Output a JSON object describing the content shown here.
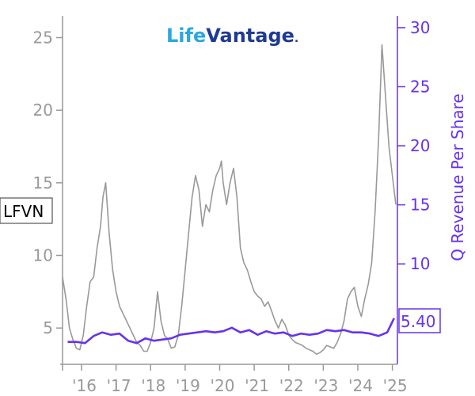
{
  "chart_data": {
    "type": "line",
    "ticker": "LFVN",
    "title": "",
    "logo": {
      "text_part1": "Life",
      "text_part2": "Vantage",
      "text_suffix": ".",
      "color1": "#2aa7e0",
      "color2": "#1f3a93"
    },
    "x_tick_labels": [
      "'16",
      "'17",
      "'18",
      "'19",
      "'20",
      "'21",
      "'22",
      "'23",
      "'24",
      "'25"
    ],
    "xlim": [
      2015.45,
      2025.1
    ],
    "left_axis": {
      "label": "",
      "ylim": [
        2.5,
        26.5
      ],
      "ticks": [
        5,
        10,
        15,
        20,
        25
      ],
      "color": "#999999"
    },
    "right_axis": {
      "label": "Q Revenue Per Share",
      "ylim": [
        1.5,
        31
      ],
      "ticks": [
        10,
        15,
        20,
        25,
        30
      ],
      "color": "#6633ee"
    },
    "series": [
      {
        "name": "LFVN",
        "axis": "left",
        "color": "#999999",
        "last_value_label": "LFVN",
        "x": [
          2015.45,
          2015.55,
          2015.65,
          2015.75,
          2015.85,
          2015.95,
          2016.05,
          2016.15,
          2016.25,
          2016.35,
          2016.45,
          2016.55,
          2016.62,
          2016.7,
          2016.8,
          2016.9,
          2017.0,
          2017.1,
          2017.2,
          2017.3,
          2017.4,
          2017.5,
          2017.6,
          2017.7,
          2017.8,
          2017.9,
          2018.0,
          2018.1,
          2018.2,
          2018.3,
          2018.4,
          2018.5,
          2018.6,
          2018.7,
          2018.8,
          2018.9,
          2019.0,
          2019.1,
          2019.2,
          2019.3,
          2019.4,
          2019.5,
          2019.6,
          2019.7,
          2019.8,
          2019.9,
          2020.0,
          2020.05,
          2020.1,
          2020.2,
          2020.3,
          2020.4,
          2020.5,
          2020.6,
          2020.7,
          2020.8,
          2020.9,
          2021.0,
          2021.1,
          2021.2,
          2021.3,
          2021.4,
          2021.5,
          2021.6,
          2021.7,
          2021.8,
          2021.9,
          2022.0,
          2022.1,
          2022.2,
          2022.3,
          2022.4,
          2022.5,
          2022.6,
          2022.7,
          2022.8,
          2022.9,
          2023.0,
          2023.1,
          2023.2,
          2023.3,
          2023.4,
          2023.5,
          2023.6,
          2023.7,
          2023.8,
          2023.9,
          2024.0,
          2024.1,
          2024.2,
          2024.3,
          2024.4,
          2024.5,
          2024.6,
          2024.7,
          2024.8,
          2024.9,
          2025.0,
          2025.1
        ],
        "values": [
          8.5,
          7.0,
          5.0,
          4.2,
          3.6,
          3.5,
          4.5,
          6.5,
          8.2,
          8.5,
          10.5,
          12.0,
          14.0,
          15.0,
          11.5,
          9.0,
          7.5,
          6.5,
          6.0,
          5.5,
          5.0,
          4.5,
          4.0,
          3.8,
          3.4,
          3.4,
          4.0,
          5.0,
          7.5,
          5.5,
          4.5,
          4.2,
          3.6,
          3.7,
          4.5,
          6.5,
          9.0,
          11.5,
          14.0,
          15.5,
          14.5,
          12.0,
          13.5,
          13.0,
          14.5,
          15.5,
          16.0,
          16.5,
          15.0,
          13.5,
          15.0,
          16.0,
          14.0,
          10.5,
          9.5,
          9.0,
          8.2,
          7.5,
          7.2,
          7.0,
          6.5,
          6.8,
          6.2,
          5.5,
          5.0,
          5.6,
          5.2,
          4.5,
          4.2,
          4.0,
          3.9,
          3.8,
          3.6,
          3.5,
          3.4,
          3.2,
          3.3,
          3.5,
          3.8,
          3.7,
          3.6,
          4.0,
          4.6,
          5.5,
          7.0,
          7.5,
          7.8,
          6.5,
          5.8,
          7.0,
          8.0,
          9.5,
          13.0,
          18.0,
          24.5,
          21.0,
          17.5,
          15.5,
          13.5
        ]
      },
      {
        "name": "Q Revenue Per Share",
        "axis": "right",
        "color": "#6633ee",
        "last_value_label": "5.40",
        "x": [
          2015.6,
          2015.85,
          2016.1,
          2016.35,
          2016.6,
          2016.85,
          2017.1,
          2017.35,
          2017.6,
          2017.85,
          2018.1,
          2018.35,
          2018.6,
          2018.85,
          2019.1,
          2019.35,
          2019.6,
          2019.85,
          2020.1,
          2020.35,
          2020.6,
          2020.85,
          2021.1,
          2021.35,
          2021.6,
          2021.85,
          2022.1,
          2022.35,
          2022.6,
          2022.85,
          2023.1,
          2023.35,
          2023.6,
          2023.85,
          2024.1,
          2024.35,
          2024.6,
          2024.85,
          2025.05
        ],
        "values": [
          3.4,
          3.4,
          3.3,
          3.9,
          4.2,
          4.0,
          4.1,
          3.5,
          3.3,
          3.7,
          3.5,
          3.6,
          3.7,
          4.0,
          4.1,
          4.2,
          4.3,
          4.2,
          4.3,
          4.6,
          4.2,
          4.4,
          4.0,
          4.3,
          4.1,
          4.2,
          3.9,
          4.1,
          4.0,
          4.1,
          4.4,
          4.3,
          4.4,
          4.2,
          4.2,
          4.1,
          3.9,
          4.2,
          5.4
        ]
      }
    ],
    "grid": false
  }
}
